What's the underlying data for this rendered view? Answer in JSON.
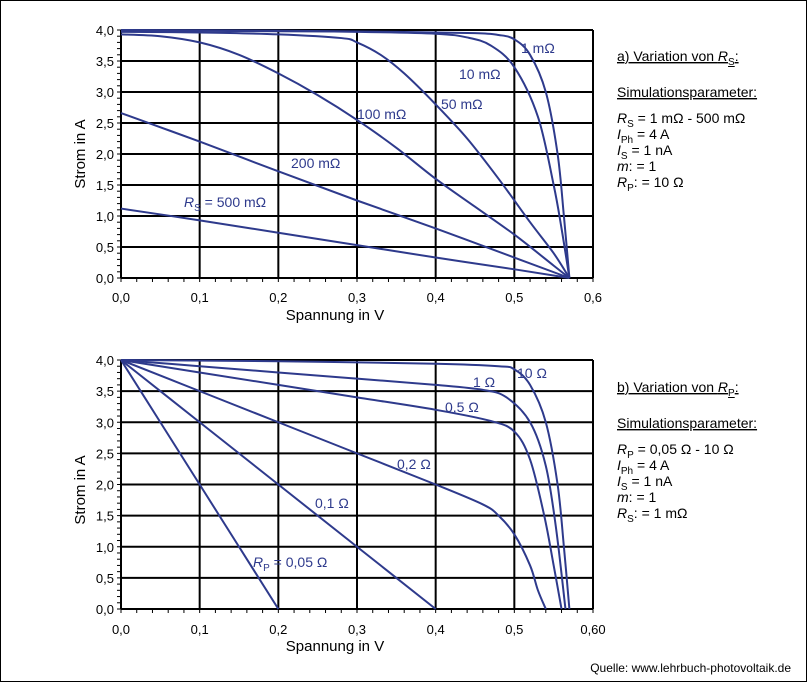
{
  "colors": {
    "curve": "#2e3a8c",
    "grid": "#000000"
  },
  "source": "Quelle: www.lehrbuch-photovoltaik.de",
  "chart_data": [
    {
      "type": "line",
      "xlabel": "Spannung  in V",
      "ylabel": "Strom in A",
      "xlim": [
        0,
        0.6
      ],
      "ylim": [
        0,
        4
      ],
      "x_ticks": [
        "0,0",
        "0,1",
        "0,2",
        "0,3",
        "0,4",
        "0,5",
        "0,6"
      ],
      "y_ticks": [
        "0,0",
        "0,5",
        "1,0",
        "1,5",
        "2,0",
        "2,5",
        "3,0",
        "3,5",
        "4,0"
      ],
      "grid": true,
      "series": [
        {
          "name": "1 mΩ",
          "points": [
            [
              0,
              4.0
            ],
            [
              0.2,
              3.99
            ],
            [
              0.35,
              3.97
            ],
            [
              0.45,
              3.95
            ],
            [
              0.48,
              3.92
            ],
            [
              0.5,
              3.85
            ],
            [
              0.52,
              3.6
            ],
            [
              0.54,
              3.0
            ],
            [
              0.555,
              2.0
            ],
            [
              0.563,
              1.0
            ],
            [
              0.57,
              0.0
            ]
          ]
        },
        {
          "name": "10 mΩ",
          "points": [
            [
              0,
              3.99
            ],
            [
              0.2,
              3.98
            ],
            [
              0.3,
              3.97
            ],
            [
              0.4,
              3.94
            ],
            [
              0.44,
              3.88
            ],
            [
              0.47,
              3.75
            ],
            [
              0.5,
              3.4
            ],
            [
              0.53,
              2.6
            ],
            [
              0.55,
              1.5
            ],
            [
              0.56,
              0.8
            ],
            [
              0.57,
              0.0
            ]
          ]
        },
        {
          "name": "50 mΩ",
          "points": [
            [
              0,
              3.97
            ],
            [
              0.1,
              3.96
            ],
            [
              0.2,
              3.93
            ],
            [
              0.28,
              3.87
            ],
            [
              0.3,
              3.8
            ],
            [
              0.33,
              3.6
            ],
            [
              0.36,
              3.3
            ],
            [
              0.4,
              2.8
            ],
            [
              0.44,
              2.25
            ],
            [
              0.48,
              1.6
            ],
            [
              0.52,
              0.9
            ],
            [
              0.55,
              0.4
            ],
            [
              0.57,
              0.0
            ]
          ]
        },
        {
          "name": "100 mΩ",
          "points": [
            [
              0,
              3.93
            ],
            [
              0.05,
              3.9
            ],
            [
              0.1,
              3.8
            ],
            [
              0.15,
              3.6
            ],
            [
              0.2,
              3.3
            ],
            [
              0.25,
              2.95
            ],
            [
              0.3,
              2.55
            ],
            [
              0.35,
              2.1
            ],
            [
              0.4,
              1.6
            ],
            [
              0.45,
              1.15
            ],
            [
              0.5,
              0.7
            ],
            [
              0.55,
              0.2
            ],
            [
              0.57,
              0.0
            ]
          ]
        },
        {
          "name": "200 mΩ",
          "points": [
            [
              0,
              2.66
            ],
            [
              0.1,
              2.2
            ],
            [
              0.2,
              1.72
            ],
            [
              0.3,
              1.25
            ],
            [
              0.4,
              0.8
            ],
            [
              0.5,
              0.33
            ],
            [
              0.57,
              0.0
            ]
          ]
        },
        {
          "name": "RS = 500 mΩ",
          "points": [
            [
              0,
              1.12
            ],
            [
              0.1,
              0.93
            ],
            [
              0.2,
              0.73
            ],
            [
              0.3,
              0.53
            ],
            [
              0.4,
              0.33
            ],
            [
              0.5,
              0.14
            ],
            [
              0.57,
              0.0
            ]
          ]
        }
      ],
      "side_panel": {
        "title_prefix": "a) Variation von ",
        "title_sym": "R",
        "title_sub": "S",
        "title_suffix": ":",
        "params_title": "Simulationsparameter:",
        "params": [
          {
            "sym": "R",
            "sub": "S",
            "value": "  =  1 mΩ - 500 mΩ"
          },
          {
            "sym": "I",
            "sub": "Ph",
            "value": "  =  4 A"
          },
          {
            "sym": "I",
            "sub": "S",
            "value": "  =  1 nA"
          },
          {
            "sym": "m",
            "sub": "",
            "value": ":    =  1"
          },
          {
            "sym": "R",
            "sub": "P",
            "value": ":  =  10 Ω"
          }
        ]
      }
    },
    {
      "type": "line",
      "xlabel": "Spannung  in V",
      "ylabel": "Strom in A",
      "xlim": [
        0,
        0.6
      ],
      "ylim": [
        0,
        4
      ],
      "x_ticks": [
        "0,0",
        "0,1",
        "0,2",
        "0,3",
        "0,4",
        "0,5",
        "0,60"
      ],
      "y_ticks": [
        "0,0",
        "0,5",
        "1,0",
        "1,5",
        "2,0",
        "2,5",
        "3,0",
        "3,5",
        "4,0"
      ],
      "grid": true,
      "series": [
        {
          "name": "10 Ω",
          "points": [
            [
              0,
              4.0
            ],
            [
              0.2,
              3.98
            ],
            [
              0.4,
              3.94
            ],
            [
              0.48,
              3.9
            ],
            [
              0.5,
              3.85
            ],
            [
              0.52,
              3.6
            ],
            [
              0.54,
              3.0
            ],
            [
              0.555,
              2.0
            ],
            [
              0.563,
              1.0
            ],
            [
              0.57,
              0.0
            ]
          ]
        },
        {
          "name": "1 Ω",
          "points": [
            [
              0,
              4.0
            ],
            [
              0.1,
              3.9
            ],
            [
              0.2,
              3.8
            ],
            [
              0.3,
              3.7
            ],
            [
              0.4,
              3.6
            ],
            [
              0.46,
              3.52
            ],
            [
              0.49,
              3.4
            ],
            [
              0.52,
              3.0
            ],
            [
              0.54,
              2.3
            ],
            [
              0.553,
              1.3
            ],
            [
              0.565,
              0.0
            ]
          ]
        },
        {
          "name": "0,5 Ω",
          "points": [
            [
              0,
              4.0
            ],
            [
              0.1,
              3.8
            ],
            [
              0.2,
              3.6
            ],
            [
              0.3,
              3.4
            ],
            [
              0.4,
              3.2
            ],
            [
              0.47,
              3.02
            ],
            [
              0.5,
              2.85
            ],
            [
              0.52,
              2.4
            ],
            [
              0.538,
              1.5
            ],
            [
              0.55,
              0.7
            ],
            [
              0.56,
              0.0
            ]
          ]
        },
        {
          "name": "0,2 Ω",
          "points": [
            [
              0,
              4.0
            ],
            [
              0.1,
              3.5
            ],
            [
              0.2,
              3.0
            ],
            [
              0.3,
              2.5
            ],
            [
              0.4,
              2.0
            ],
            [
              0.46,
              1.68
            ],
            [
              0.48,
              1.5
            ],
            [
              0.5,
              1.2
            ],
            [
              0.52,
              0.7
            ],
            [
              0.53,
              0.3
            ],
            [
              0.54,
              0.0
            ]
          ]
        },
        {
          "name": "0,1 Ω",
          "points": [
            [
              0,
              4.0
            ],
            [
              0.1,
              3.0
            ],
            [
              0.2,
              2.0
            ],
            [
              0.3,
              1.0
            ],
            [
              0.4,
              0.0
            ]
          ]
        },
        {
          "name": "RP = 0,05 Ω",
          "points": [
            [
              0,
              4.0
            ],
            [
              0.05,
              3.0
            ],
            [
              0.1,
              2.0
            ],
            [
              0.15,
              1.0
            ],
            [
              0.2,
              0.0
            ]
          ]
        }
      ],
      "side_panel": {
        "title_prefix": "b) Variation von ",
        "title_sym": "R",
        "title_sub": "P",
        "title_suffix": ":",
        "params_title": "Simulationsparameter:",
        "params": [
          {
            "sym": "R",
            "sub": "P",
            "value": "  =  0,05 Ω - 10 Ω"
          },
          {
            "sym": "I",
            "sub": "Ph",
            "value": "  =  4 A"
          },
          {
            "sym": "I",
            "sub": "S",
            "value": "  =  1 nA"
          },
          {
            "sym": "m",
            "sub": "",
            "value": ":    =  1"
          },
          {
            "sym": "R",
            "sub": "S",
            "value": ":  =  1 mΩ"
          }
        ]
      }
    }
  ]
}
